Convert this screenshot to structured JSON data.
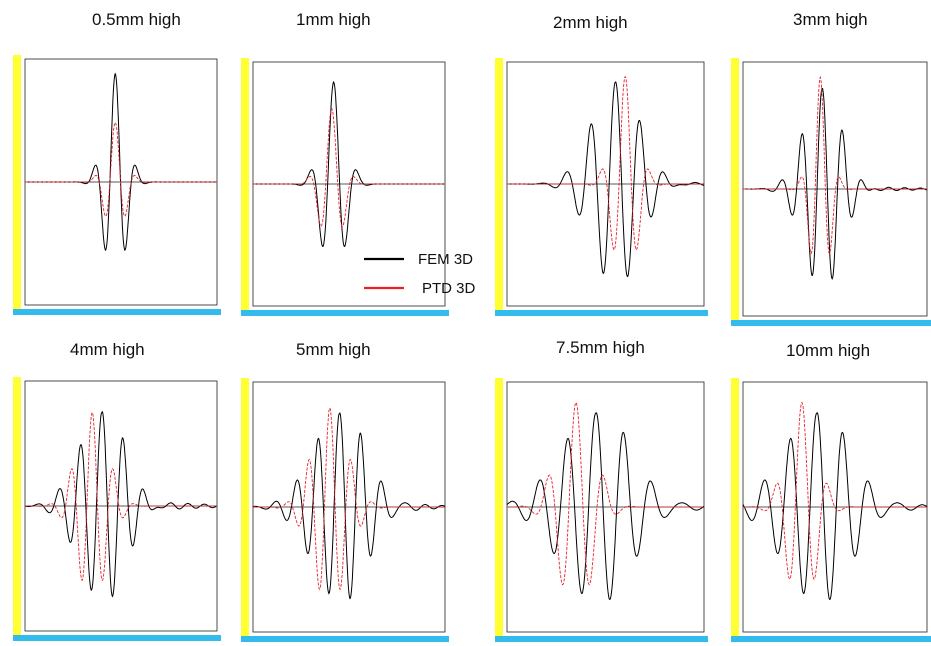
{
  "panel_titles": [
    "0.5mm high",
    "1mm high",
    "2mm high",
    "3mm high",
    "4mm high",
    "5mm high",
    "7.5mm high",
    "10mm high"
  ],
  "legend": [
    {
      "label": "FEM 3D",
      "color": "#000000"
    },
    {
      "label": "PTD 3D",
      "color": "#e8202a"
    }
  ],
  "colors": {
    "axis_bar_left": "#ffff33",
    "axis_bar_bottom": "#33bbee",
    "fem": "#000000",
    "ptd": "#e8202a"
  },
  "chart_data": [
    {
      "type": "line",
      "title": "0.5mm high",
      "series": [
        {
          "name": "FEM 3D",
          "peak": 1.0,
          "center": 0.47,
          "freq": 9,
          "sigma": 0.055,
          "tail": 0
        },
        {
          "name": "PTD 3D",
          "peak": 0.55,
          "center": 0.47,
          "freq": 9,
          "sigma": 0.05,
          "tail": 0
        }
      ]
    },
    {
      "type": "line",
      "title": "1mm high",
      "series": [
        {
          "name": "FEM 3D",
          "peak": 0.95,
          "center": 0.42,
          "freq": 8,
          "sigma": 0.06,
          "tail": 0
        },
        {
          "name": "PTD 3D",
          "peak": 0.7,
          "center": 0.41,
          "freq": 8,
          "sigma": 0.055,
          "tail": 0
        }
      ]
    },
    {
      "type": "line",
      "title": "2mm high",
      "series": [
        {
          "name": "FEM 3D",
          "peak": 0.95,
          "center": 0.55,
          "freq": 8,
          "sigma": 0.12,
          "tail": 0.05
        },
        {
          "name": "PTD 3D",
          "peak": 1.0,
          "center": 0.6,
          "freq": 8,
          "sigma": 0.06,
          "tail": 0
        }
      ]
    },
    {
      "type": "line",
      "title": "3mm high",
      "series": [
        {
          "name": "FEM 3D",
          "peak": 0.9,
          "center": 0.43,
          "freq": 9,
          "sigma": 0.1,
          "tail": 0.05
        },
        {
          "name": "PTD 3D",
          "peak": 1.0,
          "center": 0.42,
          "freq": 9,
          "sigma": 0.05,
          "tail": 0
        }
      ]
    },
    {
      "type": "line",
      "title": "4mm high",
      "series": [
        {
          "name": "FEM 3D",
          "peak": 0.85,
          "center": 0.4,
          "freq": 9,
          "sigma": 0.12,
          "tail": 0.1
        },
        {
          "name": "PTD 3D",
          "peak": 0.85,
          "center": 0.35,
          "freq": 9,
          "sigma": 0.08,
          "tail": 0
        }
      ]
    },
    {
      "type": "line",
      "title": "5mm high",
      "series": [
        {
          "name": "FEM 3D",
          "peak": 0.85,
          "center": 0.45,
          "freq": 9,
          "sigma": 0.14,
          "tail": 0.08
        },
        {
          "name": "PTD 3D",
          "peak": 0.9,
          "center": 0.4,
          "freq": 9,
          "sigma": 0.09,
          "tail": 0
        }
      ]
    },
    {
      "type": "line",
      "title": "7.5mm high",
      "series": [
        {
          "name": "FEM 3D",
          "peak": 0.85,
          "center": 0.45,
          "freq": 7,
          "sigma": 0.18,
          "tail": 0.1
        },
        {
          "name": "PTD 3D",
          "peak": 0.95,
          "center": 0.35,
          "freq": 7,
          "sigma": 0.09,
          "tail": 0
        }
      ]
    },
    {
      "type": "line",
      "title": "10mm high",
      "series": [
        {
          "name": "FEM 3D",
          "peak": 0.85,
          "center": 0.4,
          "freq": 7,
          "sigma": 0.18,
          "tail": 0.1
        },
        {
          "name": "PTD 3D",
          "peak": 0.95,
          "center": 0.32,
          "freq": 7,
          "sigma": 0.08,
          "tail": 0
        }
      ]
    }
  ]
}
